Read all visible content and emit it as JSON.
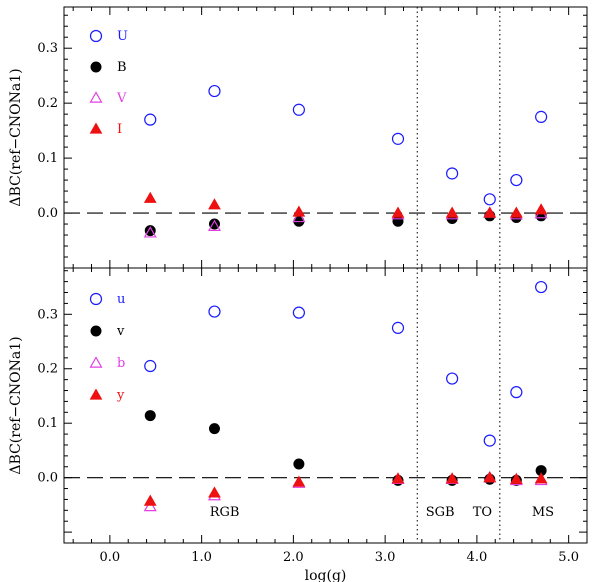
{
  "chart_data": [
    {
      "type": "scatter",
      "panel": "top",
      "ylabel": "ΔBC(ref−CNONa1)",
      "xlim": [
        -0.5,
        5.2
      ],
      "ylim": [
        -0.1,
        0.375
      ],
      "yticks": [
        0.0,
        0.1,
        0.2,
        0.3
      ],
      "ytick_labels": [
        "0.0",
        "0.1",
        "0.2",
        "0.3"
      ],
      "reference_line": {
        "y": 0.0,
        "style": "dashed"
      },
      "vlines": [
        3.35,
        4.25
      ],
      "legend": [
        {
          "label": "U",
          "color": "#1a1aff",
          "marker": "open-circle"
        },
        {
          "label": "B",
          "color": "#000000",
          "marker": "filled-circle"
        },
        {
          "label": "V",
          "color": "#e040e0",
          "marker": "open-triangle"
        },
        {
          "label": "I",
          "color": "#ee1111",
          "marker": "filled-triangle"
        }
      ],
      "x": [
        0.44,
        1.14,
        2.06,
        3.14,
        3.73,
        4.14,
        4.43,
        4.7
      ],
      "series": [
        {
          "name": "U",
          "values": [
            0.17,
            0.222,
            0.188,
            0.135,
            0.072,
            0.025,
            0.06,
            0.175
          ]
        },
        {
          "name": "B",
          "values": [
            -0.032,
            -0.02,
            -0.015,
            -0.015,
            -0.01,
            -0.005,
            -0.008,
            -0.005
          ]
        },
        {
          "name": "V",
          "values": [
            -0.036,
            -0.024,
            -0.008,
            -0.003,
            -0.003,
            0.0,
            -0.003,
            -0.001
          ]
        },
        {
          "name": "I",
          "values": [
            0.027,
            0.015,
            0.002,
            0.0,
            0.0,
            0.0,
            0.0,
            0.006
          ]
        }
      ]
    },
    {
      "type": "scatter",
      "panel": "bottom",
      "xlabel": "log(g)",
      "ylabel": "ΔBC(ref−CNONa1)",
      "xlim": [
        -0.5,
        5.2
      ],
      "ylim": [
        -0.12,
        0.385
      ],
      "xticks": [
        0.0,
        1.0,
        2.0,
        3.0,
        4.0,
        5.0
      ],
      "xtick_labels": [
        "0.0",
        "1.0",
        "2.0",
        "3.0",
        "4.0",
        "5.0"
      ],
      "yticks": [
        0.0,
        0.1,
        0.2,
        0.3
      ],
      "ytick_labels": [
        "0.0",
        "0.1",
        "0.2",
        "0.3"
      ],
      "reference_line": {
        "y": 0.0,
        "style": "dashed"
      },
      "vlines": [
        3.35,
        4.25
      ],
      "region_labels": [
        {
          "text": "RGB",
          "x": 1.25
        },
        {
          "text": "SGB",
          "x": 3.6
        },
        {
          "text": "TO",
          "x": 4.06
        },
        {
          "text": "MS",
          "x": 4.72
        }
      ],
      "legend": [
        {
          "label": "u",
          "color": "#1a1aff",
          "marker": "open-circle"
        },
        {
          "label": "v",
          "color": "#000000",
          "marker": "filled-circle"
        },
        {
          "label": "b",
          "color": "#e040e0",
          "marker": "open-triangle"
        },
        {
          "label": "y",
          "color": "#ee1111",
          "marker": "filled-triangle"
        }
      ],
      "x": [
        0.44,
        1.14,
        2.06,
        3.14,
        3.73,
        4.14,
        4.43,
        4.7
      ],
      "series": [
        {
          "name": "u",
          "values": [
            0.205,
            0.305,
            0.303,
            0.275,
            0.182,
            0.068,
            0.157,
            0.35
          ]
        },
        {
          "name": "v",
          "values": [
            0.114,
            0.09,
            0.025,
            -0.005,
            -0.005,
            -0.003,
            -0.005,
            0.013
          ]
        },
        {
          "name": "b",
          "values": [
            -0.053,
            -0.033,
            -0.01,
            -0.003,
            -0.003,
            0.0,
            -0.005,
            -0.005
          ]
        },
        {
          "name": "y",
          "values": [
            -0.043,
            -0.028,
            -0.008,
            -0.002,
            -0.002,
            0.0,
            -0.003,
            -0.002
          ]
        }
      ]
    }
  ]
}
